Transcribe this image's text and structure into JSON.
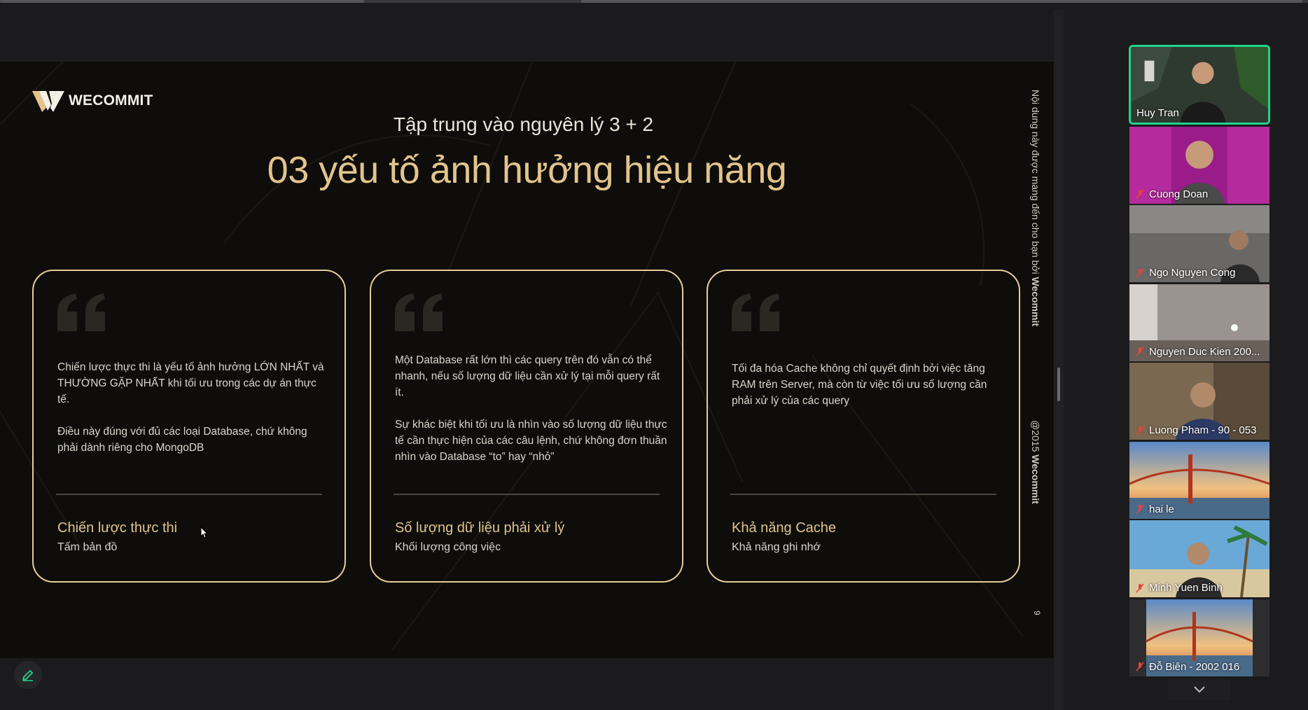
{
  "slide": {
    "logo_text": "WECOMMIT",
    "subtitle": "Tập trung vào nguyên lý 3 + 2",
    "title": "03 yếu tố ảnh hưởng hiệu năng",
    "side_note_prefix": "Nội dung này được mang đến cho bạn bởi ",
    "side_note_brand": "Wecommit",
    "copyright_prefix": "@2015 ",
    "copyright_brand": "Wecommit",
    "page_number": "9",
    "cards": [
      {
        "body": "Chiến lược thực thi là yếu tố ảnh hưởng LỚN NHẤT và THƯỜNG GẶP NHẤT khi tối ưu trong các dự án thực tế.\n\nĐiều này đúng với đủ các loại Database, chứ không phải dành riêng cho MongoDB",
        "label": "Chiến lược thực thi",
        "sublabel": "Tấm bản đồ"
      },
      {
        "body": "Một Database rất lớn thì các query trên đó vẫn có thể nhanh, nếu số lượng dữ liệu cần xử lý tại mỗi query rất ít.\n\nSự khác biệt khi tối ưu là nhìn vào số lượng dữ liệu thực tế cần thực hiện của các câu lệnh, chứ không đơn thuần nhìn vào Database “to” hay “nhỏ”",
        "label": "Số lượng dữ liệu phải xử lý",
        "sublabel": "Khối lượng công việc"
      },
      {
        "body": "Tối đa hóa Cache không chỉ quyết định bởi việc tăng RAM trên Server, mà còn từ việc tối ưu số lượng cần phải xử lý của các query",
        "label": "Khả năng Cache",
        "sublabel": "Khả năng ghi nhớ"
      }
    ]
  },
  "controls": [
    "previous-icon",
    "next-icon",
    "pen-icon",
    "slides-icon",
    "zoom-icon",
    "subtitles-icon",
    "camera-icon",
    "more-icon"
  ],
  "participants": [
    {
      "name": "Huy Tran",
      "speaking": true,
      "muted": false,
      "bg": "#3a4a3a"
    },
    {
      "name": "Cuong Doan",
      "speaking": false,
      "muted": true,
      "bg": "#9a1b8a"
    },
    {
      "name": "Ngo Nguyen Cong",
      "speaking": false,
      "muted": true,
      "bg": "#5a5a5c"
    },
    {
      "name": "Nguyen Duc Kien 200...",
      "speaking": false,
      "muted": true,
      "bg": "#8a8482"
    },
    {
      "name": "Luong Pham - 90 - 053",
      "speaking": false,
      "muted": true,
      "bg": "#6b5a45"
    },
    {
      "name": "hai le",
      "speaking": false,
      "muted": true,
      "bg": "#c57b45"
    },
    {
      "name": "Minh Yuen Binh",
      "speaking": false,
      "muted": true,
      "bg": "#4d90c8"
    },
    {
      "name": "Đỗ Biên - 2002 016",
      "speaking": false,
      "muted": true,
      "bg": "#c57b45"
    }
  ],
  "colors": {
    "accent_gold": "#e2c48c",
    "speaking_border": "#23d18b",
    "mute_red": "#e5443b"
  }
}
